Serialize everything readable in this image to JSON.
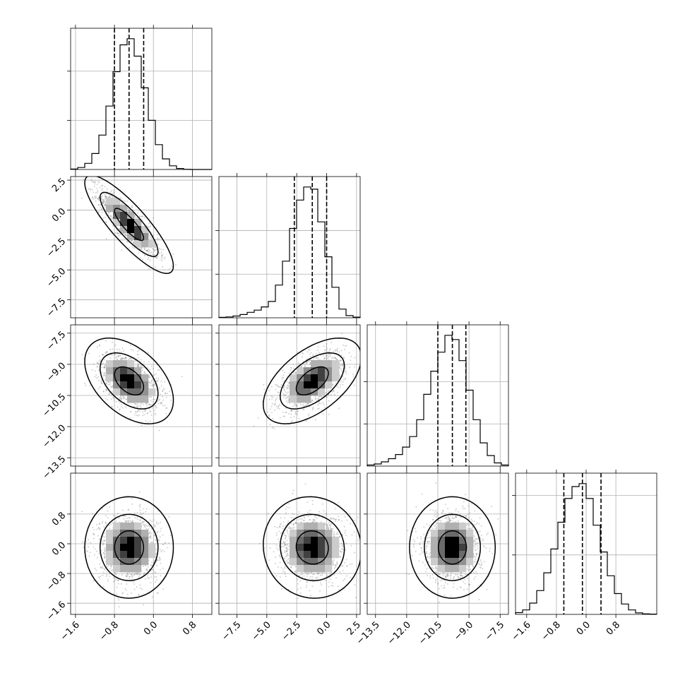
{
  "chart_data": {
    "type": "corner",
    "title": "",
    "parameters": [
      {
        "mean": -0.5,
        "sd": 0.3,
        "range": [
          -1.7,
          1.2
        ],
        "ticks": [
          -1.6,
          -0.8,
          0.0,
          0.8
        ],
        "tick_labels": [
          "−1.6",
          "−0.8",
          "0.0",
          "0.8"
        ],
        "quantiles": [
          -0.8,
          -0.5,
          -0.2
        ]
      },
      {
        "mean": -1.2,
        "sd": 1.35,
        "range": [
          -9.0,
          2.8
        ],
        "ticks": [
          -7.5,
          -5.0,
          -2.5,
          0.0,
          2.5
        ],
        "tick_labels": [
          "−7.5",
          "−5.0",
          "−2.5",
          "0.0",
          "2.5"
        ],
        "quantiles": [
          -2.7,
          -1.2,
          0.0
        ]
      },
      {
        "mean": -9.8,
        "sd": 0.68,
        "range": [
          -13.9,
          -7.1
        ],
        "ticks": [
          -13.5,
          -12.0,
          -10.5,
          -9.0,
          -7.5
        ],
        "tick_labels": [
          "−13.5",
          "−12.0",
          "−10.5",
          "−9.0",
          "−7.5"
        ],
        "quantiles": [
          -10.5,
          -9.8,
          -9.15
        ]
      },
      {
        "mean": -0.1,
        "sd": 0.45,
        "range": [
          -1.9,
          1.9
        ],
        "ticks": [
          -1.6,
          -0.8,
          0.0,
          0.8
        ],
        "tick_labels": [
          "−1.6",
          "−0.8",
          "0.0",
          "0.8"
        ],
        "quantiles": [
          -0.6,
          -0.1,
          0.4
        ]
      }
    ],
    "histograms": [
      {
        "param": 0,
        "bin_edges": [
          -1.7,
          -1.555,
          -1.41,
          -1.265,
          -1.12,
          -0.975,
          -0.83,
          -0.685,
          -0.54,
          -0.395,
          -0.25,
          -0.105,
          0.04,
          0.185,
          0.33,
          0.475,
          0.62,
          0.765,
          0.91,
          1.055,
          1.2
        ],
        "counts": [
          2,
          8,
          25,
          65,
          140,
          258,
          398,
          507,
          532,
          461,
          332,
          200,
          101,
          43,
          15,
          4,
          1,
          0,
          0,
          0
        ],
        "count_ticks": [
          200,
          400
        ]
      },
      {
        "param": 1,
        "bin_edges": [
          -9.0,
          -8.41,
          -7.82,
          -7.23,
          -6.64,
          -6.05,
          -5.46,
          -4.87,
          -4.28,
          -3.69,
          -3.1,
          -2.51,
          -1.92,
          -1.33,
          -0.74,
          -0.15,
          0.44,
          1.03,
          1.62,
          2.21,
          2.8
        ],
        "counts": [
          2,
          4,
          8,
          15,
          25,
          35,
          50,
          75,
          150,
          260,
          410,
          540,
          600,
          590,
          440,
          280,
          140,
          40,
          10,
          3
        ],
        "count_ticks": [
          200,
          400
        ]
      },
      {
        "param": 2,
        "bin_edges": [
          -13.9,
          -13.56,
          -13.22,
          -12.88,
          -12.54,
          -12.2,
          -11.86,
          -11.52,
          -11.18,
          -10.84,
          -10.5,
          -10.16,
          -9.82,
          -9.48,
          -9.14,
          -8.8,
          -8.46,
          -8.12,
          -7.78,
          -7.44,
          -7.1
        ],
        "counts": [
          5,
          10,
          20,
          35,
          55,
          90,
          140,
          220,
          340,
          450,
          540,
          620,
          600,
          500,
          360,
          220,
          110,
          50,
          15,
          5
        ],
        "count_ticks": [
          200,
          400
        ]
      },
      {
        "param": 3,
        "bin_edges": [
          -1.9,
          -1.71,
          -1.52,
          -1.33,
          -1.14,
          -0.95,
          -0.76,
          -0.57,
          -0.38,
          -0.19,
          0.0,
          0.19,
          0.38,
          0.57,
          0.76,
          0.95,
          1.14,
          1.33,
          1.52,
          1.71,
          1.9
        ],
        "counts": [
          6,
          15,
          38,
          80,
          140,
          220,
          310,
          390,
          430,
          440,
          390,
          300,
          210,
          130,
          70,
          35,
          15,
          5,
          2,
          1
        ],
        "count_ticks": [
          200,
          400
        ]
      }
    ],
    "pairs": [
      {
        "x_param": 0,
        "y_param": 1,
        "correlation": -0.85
      },
      {
        "x_param": 0,
        "y_param": 2,
        "correlation": -0.45
      },
      {
        "x_param": 1,
        "y_param": 2,
        "correlation": 0.55
      },
      {
        "x_param": 0,
        "y_param": 3,
        "correlation": 0.0
      },
      {
        "x_param": 1,
        "y_param": 3,
        "correlation": -0.05
      },
      {
        "x_param": 2,
        "y_param": 3,
        "correlation": 0.0
      }
    ],
    "contour_levels": [
      0.39,
      0.86,
      0.99
    ],
    "grid": true,
    "colors": {
      "hist": "#000000",
      "density": "#000000",
      "points": "#7a7a7a",
      "grid": "#b0b0b0"
    }
  }
}
